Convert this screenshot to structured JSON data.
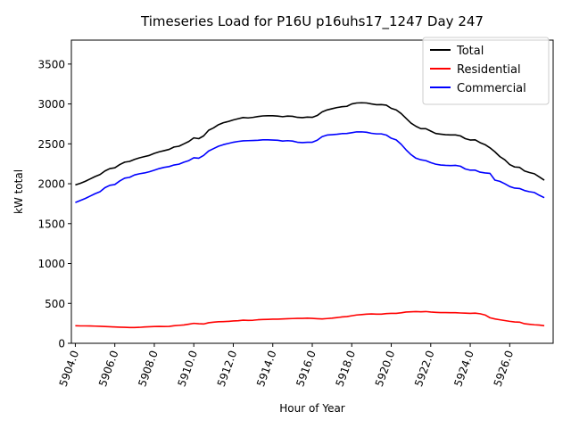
{
  "chart_data": {
    "type": "line",
    "title": "Timeseries Load for P16U p16uhs17_1247  Day 247",
    "xlabel": "Hour of Year",
    "ylabel": "kW total",
    "xlim": [
      5903.8,
      5928.2
    ],
    "ylim": [
      0,
      3800
    ],
    "x_ticks": [
      "5904.0",
      "5906.0",
      "5908.0",
      "5910.0",
      "5912.0",
      "5914.0",
      "5916.0",
      "5918.0",
      "5920.0",
      "5922.0",
      "5924.0",
      "5926.0"
    ],
    "x_tick_values": [
      5904,
      5906,
      5908,
      5910,
      5912,
      5914,
      5916,
      5918,
      5920,
      5922,
      5924,
      5926
    ],
    "y_ticks": [
      "0",
      "500",
      "1000",
      "1500",
      "2000",
      "2500",
      "3000",
      "3500"
    ],
    "y_tick_values": [
      0,
      500,
      1000,
      1500,
      2000,
      2500,
      3000,
      3500
    ],
    "legend_position": "top-right",
    "x": [
      5904,
      5904.25,
      5904.5,
      5904.75,
      5905,
      5905.25,
      5905.5,
      5905.75,
      5906,
      5906.25,
      5906.5,
      5906.75,
      5907,
      5907.25,
      5907.5,
      5907.75,
      5908,
      5908.25,
      5908.5,
      5908.75,
      5909,
      5909.25,
      5909.5,
      5909.75,
      5910,
      5910.25,
      5910.5,
      5910.75,
      5911,
      5911.25,
      5911.5,
      5911.75,
      5912,
      5912.25,
      5912.5,
      5912.75,
      5913,
      5913.25,
      5913.5,
      5913.75,
      5914,
      5914.25,
      5914.5,
      5914.75,
      5915,
      5915.25,
      5915.5,
      5915.75,
      5916,
      5916.25,
      5916.5,
      5916.75,
      5917,
      5917.25,
      5917.5,
      5917.75,
      5918,
      5918.25,
      5918.5,
      5918.75,
      5919,
      5919.25,
      5919.5,
      5919.75,
      5920,
      5920.25,
      5920.5,
      5920.75,
      5921,
      5921.25,
      5921.5,
      5921.75,
      5922,
      5922.25,
      5922.5,
      5922.75,
      5923,
      5923.25,
      5923.5,
      5923.75,
      5924,
      5924.25,
      5924.5,
      5924.75,
      5925,
      5925.25,
      5925.5,
      5925.75,
      5926,
      5926.25,
      5926.5,
      5926.75,
      5927,
      5927.25,
      5927.5,
      5927.75
    ],
    "series": [
      {
        "name": "Total",
        "color": "#000000",
        "values": [
          1985,
          2005,
          2030,
          2060,
          2090,
          2115,
          2160,
          2190,
          2200,
          2240,
          2270,
          2280,
          2305,
          2325,
          2340,
          2355,
          2380,
          2400,
          2415,
          2430,
          2460,
          2470,
          2500,
          2530,
          2575,
          2565,
          2600,
          2670,
          2700,
          2740,
          2765,
          2780,
          2800,
          2815,
          2830,
          2825,
          2832,
          2842,
          2850,
          2852,
          2852,
          2848,
          2840,
          2848,
          2845,
          2832,
          2828,
          2835,
          2832,
          2855,
          2900,
          2925,
          2940,
          2955,
          2965,
          2970,
          3000,
          3012,
          3015,
          3012,
          3000,
          2990,
          2992,
          2985,
          2945,
          2925,
          2880,
          2820,
          2760,
          2720,
          2690,
          2690,
          2660,
          2630,
          2622,
          2615,
          2612,
          2612,
          2600,
          2565,
          2548,
          2550,
          2515,
          2490,
          2450,
          2400,
          2340,
          2300,
          2240,
          2210,
          2205,
          2160,
          2140,
          2125,
          2085,
          2045
        ]
      },
      {
        "name": "Residential",
        "color": "#ff0000",
        "values": [
          220,
          218,
          218,
          217,
          215,
          213,
          210,
          207,
          205,
          202,
          200,
          198,
          198,
          200,
          205,
          207,
          210,
          212,
          210,
          212,
          220,
          225,
          230,
          240,
          250,
          245,
          242,
          258,
          265,
          270,
          272,
          275,
          280,
          283,
          290,
          287,
          289,
          295,
          298,
          300,
          302,
          303,
          305,
          308,
          310,
          312,
          312,
          315,
          312,
          308,
          305,
          310,
          315,
          322,
          330,
          335,
          345,
          355,
          360,
          365,
          368,
          365,
          365,
          372,
          375,
          375,
          382,
          392,
          395,
          398,
          395,
          398,
          392,
          388,
          385,
          385,
          383,
          383,
          380,
          378,
          375,
          378,
          370,
          355,
          320,
          305,
          295,
          285,
          275,
          268,
          265,
          245,
          238,
          232,
          228,
          220
        ]
      },
      {
        "name": "Commercial",
        "color": "#0000ff",
        "values": [
          1765,
          1790,
          1815,
          1845,
          1875,
          1900,
          1950,
          1980,
          1990,
          2035,
          2070,
          2080,
          2110,
          2125,
          2135,
          2150,
          2170,
          2190,
          2205,
          2215,
          2235,
          2245,
          2270,
          2290,
          2325,
          2320,
          2355,
          2410,
          2440,
          2470,
          2490,
          2505,
          2520,
          2530,
          2538,
          2540,
          2542,
          2545,
          2550,
          2550,
          2548,
          2545,
          2535,
          2540,
          2535,
          2520,
          2515,
          2520,
          2520,
          2545,
          2590,
          2610,
          2615,
          2620,
          2628,
          2630,
          2640,
          2650,
          2650,
          2645,
          2632,
          2625,
          2625,
          2610,
          2570,
          2550,
          2495,
          2425,
          2365,
          2320,
          2300,
          2290,
          2265,
          2245,
          2235,
          2230,
          2228,
          2230,
          2220,
          2185,
          2170,
          2170,
          2145,
          2135,
          2130,
          2045,
          2030,
          2000,
          1965,
          1945,
          1940,
          1915,
          1900,
          1890,
          1855,
          1825
        ]
      }
    ]
  }
}
